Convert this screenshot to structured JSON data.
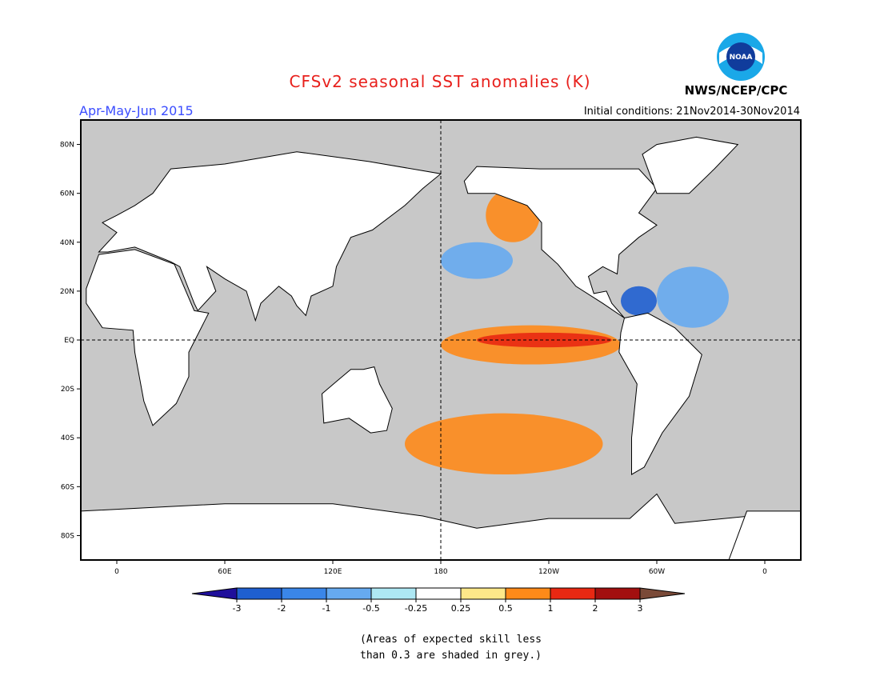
{
  "title": "CFSv2 seasonal SST anomalies (K)",
  "season": "Apr-May-Jun 2015",
  "organization": "NWS/NCEP/CPC",
  "logo_text": "NOAA",
  "initial_conditions": "Initial conditions: 21Nov2014-30Nov2014",
  "map": {
    "projection": "cylindrical equidistant",
    "lon_range": [
      -20,
      380
    ],
    "lat_range": [
      -90,
      90
    ],
    "lat_tick_labels": [
      "80N",
      "60N",
      "40N",
      "20N",
      "EQ",
      "20S",
      "40S",
      "60S",
      "80S"
    ],
    "lat_tick_values": [
      80,
      60,
      40,
      20,
      0,
      -20,
      -40,
      -60,
      -80
    ],
    "lon_tick_labels": [
      "0",
      "60E",
      "120E",
      "180",
      "120W",
      "60W",
      "0"
    ],
    "lon_tick_values": [
      0,
      60,
      120,
      180,
      240,
      300,
      360
    ],
    "reference_lines": [
      "equator",
      "dateline"
    ],
    "land_color": "#ffffff",
    "low_skill_color": "#c8c8c8",
    "anomaly_features": [
      {
        "region": "Equatorial East Pacific",
        "lon": [
          180,
          280
        ],
        "lat": [
          -10,
          6
        ],
        "level": 5
      },
      {
        "region": "Nino core",
        "lon": [
          200,
          275
        ],
        "lat": [
          -3,
          3
        ],
        "level": 6
      },
      {
        "region": "NE Pacific warm blob",
        "lon": [
          205,
          235
        ],
        "lat": [
          40,
          62
        ],
        "level": 5
      },
      {
        "region": "Central North Pacific cool",
        "lon": [
          180,
          220
        ],
        "lat": [
          25,
          40
        ],
        "level": -3
      },
      {
        "region": "Caribbean cool",
        "lon": [
          280,
          300
        ],
        "lat": [
          10,
          22
        ],
        "level": -5
      },
      {
        "region": "Tropical Atlantic cool",
        "lon": [
          300,
          340
        ],
        "lat": [
          5,
          30
        ],
        "level": -3
      },
      {
        "region": "South Pacific warm band",
        "lon": [
          160,
          270
        ],
        "lat": [
          -55,
          -30
        ],
        "level": 5
      }
    ]
  },
  "colorbar": {
    "tick_labels": [
      "-3",
      "-2",
      "-1",
      "-0.5",
      "-0.25",
      "0.25",
      "0.5",
      "1",
      "2",
      "3"
    ],
    "colors": [
      "#1f0f9b",
      "#1f5fd0",
      "#3a86e8",
      "#66aaf0",
      "#aee8f4",
      "#ffffff",
      "#fde889",
      "#fe8a19",
      "#e82812",
      "#a20f0f",
      "#7a4a38"
    ]
  },
  "footnote": {
    "line1": "(Areas of expected skill less",
    "line2": "than 0.3 are shaded in grey.)"
  }
}
